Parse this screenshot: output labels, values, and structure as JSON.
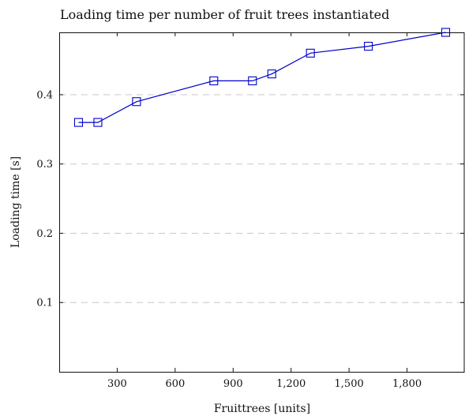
{
  "chart_data": {
    "type": "line",
    "title": "Loading time per number of fruit trees instantiated",
    "xlabel": "Fruittrees [units]",
    "ylabel": "Loading time [s]",
    "xlim": [
      0,
      2100
    ],
    "ylim": [
      0,
      0.49
    ],
    "x_ticks": [
      300,
      600,
      900,
      1200,
      1500,
      1800
    ],
    "x_tick_labels": [
      "300",
      "600",
      "900",
      "1,200",
      "1,500",
      "1,800"
    ],
    "y_ticks": [
      0.1,
      0.2,
      0.3,
      0.4
    ],
    "y_tick_labels": [
      "0.1",
      "0.2",
      "0.3",
      "0.4"
    ],
    "grid": "horizontal dashed",
    "series": [
      {
        "color": "#0000cc",
        "marker": "square",
        "x": [
          100,
          200,
          400,
          800,
          1000,
          1100,
          1300,
          1600,
          2000
        ],
        "y": [
          0.36,
          0.36,
          0.39,
          0.42,
          0.42,
          0.43,
          0.46,
          0.47,
          0.49
        ]
      }
    ]
  }
}
